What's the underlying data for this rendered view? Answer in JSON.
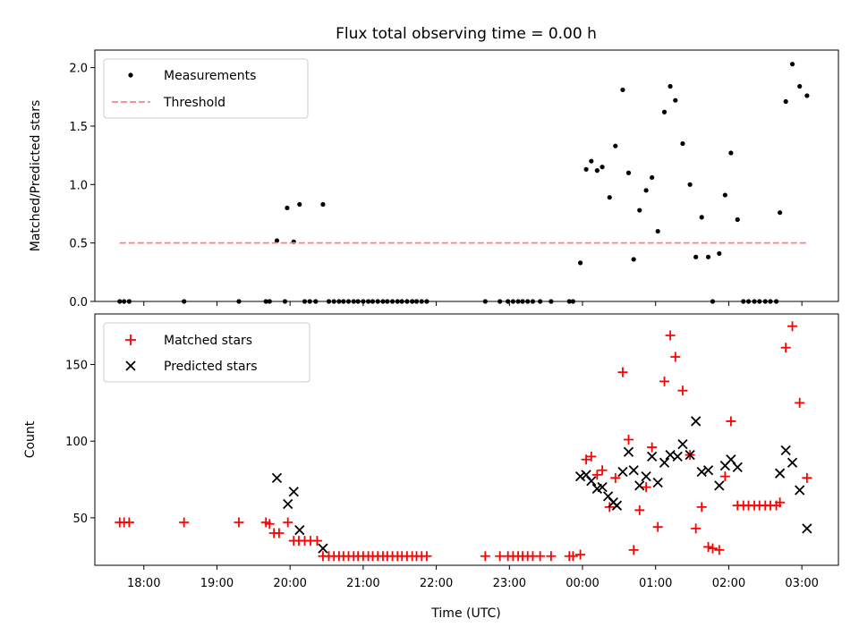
{
  "chart_data": [
    {
      "type": "scatter",
      "title": "Flux total observing time = 0.00 h",
      "xlabel": "",
      "ylabel": "Matched/Predicted stars",
      "xlim": [
        17.33,
        27.5
      ],
      "ylim": [
        0.0,
        2.15
      ],
      "yticks": [
        0.0,
        0.5,
        1.0,
        1.5,
        2.0
      ],
      "ytick_labels": [
        "0.0",
        "0.5",
        "1.0",
        "1.5",
        "2.0"
      ],
      "legend": {
        "position": "top-left",
        "entries": [
          "Measurements",
          "Threshold"
        ]
      },
      "series": [
        {
          "name": "Measurements",
          "marker": "dot",
          "color": "#000000",
          "x": [
            17.67,
            17.73,
            17.8,
            18.55,
            19.3,
            19.67,
            19.72,
            19.82,
            19.93,
            19.96,
            20.05,
            20.13,
            20.2,
            20.27,
            20.35,
            20.45,
            20.53,
            20.6,
            20.67,
            20.73,
            20.8,
            20.87,
            20.93,
            21.0,
            21.07,
            21.13,
            21.2,
            21.27,
            21.33,
            21.4,
            21.47,
            21.53,
            21.6,
            21.67,
            21.73,
            21.8,
            21.87,
            22.67,
            22.87,
            22.98,
            23.05,
            23.12,
            23.18,
            23.25,
            23.32,
            23.42,
            23.57,
            23.82,
            23.87,
            23.97,
            24.05,
            24.12,
            24.2,
            24.27,
            24.37,
            24.45,
            24.55,
            24.63,
            24.7,
            24.78,
            24.87,
            24.95,
            25.03,
            25.12,
            25.2,
            25.27,
            25.37,
            25.47,
            25.55,
            25.63,
            25.72,
            25.78,
            25.87,
            25.95,
            26.03,
            26.12,
            26.2,
            26.27,
            26.35,
            26.42,
            26.5,
            26.57,
            26.65,
            26.7,
            26.78,
            26.87,
            26.97,
            27.07
          ],
          "y": [
            0,
            0,
            0,
            0,
            0,
            0,
            0,
            0.52,
            0,
            0.8,
            0.51,
            0.83,
            0,
            0,
            0,
            0.83,
            0,
            0,
            0,
            0,
            0,
            0,
            0,
            0,
            0,
            0,
            0,
            0,
            0,
            0,
            0,
            0,
            0,
            0,
            0,
            0,
            0,
            0,
            0,
            0,
            0,
            0,
            0,
            0,
            0,
            0,
            0,
            0,
            0,
            0.33,
            1.13,
            1.2,
            1.12,
            1.15,
            0.89,
            1.33,
            1.81,
            1.1,
            0.36,
            0.78,
            0.95,
            1.06,
            0.6,
            1.62,
            1.84,
            1.72,
            1.35,
            1.0,
            0.38,
            0.72,
            0.38,
            0,
            0.41,
            0.91,
            1.27,
            0.7,
            0,
            0,
            0,
            0,
            0,
            0,
            0,
            0.76,
            1.71,
            2.03,
            1.84,
            1.76
          ]
        },
        {
          "name": "Threshold",
          "style": "dashed",
          "color": "#ff7f7f",
          "x": [
            17.67,
            27.07
          ],
          "y": [
            0.5,
            0.5
          ]
        }
      ]
    },
    {
      "type": "scatter",
      "title": "",
      "xlabel": "Time (UTC)",
      "ylabel": "Count",
      "xlim": [
        17.33,
        27.5
      ],
      "ylim": [
        19,
        183
      ],
      "yticks": [
        50,
        100,
        150
      ],
      "ytick_labels": [
        "50",
        "100",
        "150"
      ],
      "xticks": [
        18,
        19,
        20,
        21,
        22,
        23,
        24,
        25,
        26,
        27
      ],
      "xtick_labels": [
        "18:00",
        "19:00",
        "20:00",
        "21:00",
        "22:00",
        "23:00",
        "00:00",
        "01:00",
        "02:00",
        "03:00"
      ],
      "legend": {
        "position": "top-left",
        "entries": [
          "Matched stars",
          "Predicted stars"
        ]
      },
      "series": [
        {
          "name": "Matched stars",
          "marker": "plus",
          "color": "#ff0000",
          "x": [
            17.67,
            17.73,
            17.8,
            18.55,
            19.3,
            19.67,
            19.72,
            19.78,
            19.85,
            19.97,
            20.05,
            20.12,
            20.2,
            20.28,
            20.37,
            20.45,
            20.53,
            20.6,
            20.67,
            20.73,
            20.8,
            20.87,
            20.93,
            21.0,
            21.07,
            21.13,
            21.2,
            21.27,
            21.33,
            21.4,
            21.47,
            21.53,
            21.6,
            21.67,
            21.73,
            21.8,
            21.87,
            22.67,
            22.87,
            22.98,
            23.05,
            23.12,
            23.18,
            23.25,
            23.32,
            23.42,
            23.57,
            23.82,
            23.87,
            23.97,
            24.05,
            24.12,
            24.2,
            24.27,
            24.37,
            24.45,
            24.55,
            24.63,
            24.7,
            24.78,
            24.87,
            24.95,
            25.03,
            25.12,
            25.2,
            25.27,
            25.37,
            25.47,
            25.55,
            25.63,
            25.72,
            25.78,
            25.87,
            25.95,
            26.03,
            26.12,
            26.2,
            26.27,
            26.35,
            26.42,
            26.5,
            26.57,
            26.65,
            26.7,
            26.78,
            26.87,
            26.97,
            27.07
          ],
          "y": [
            47,
            47,
            47,
            47,
            47,
            47,
            46,
            40,
            40,
            47,
            35,
            35,
            35,
            35,
            35,
            25,
            25,
            25,
            25,
            25,
            25,
            25,
            25,
            25,
            25,
            25,
            25,
            25,
            25,
            25,
            25,
            25,
            25,
            25,
            25,
            25,
            25,
            25,
            25,
            25,
            25,
            25,
            25,
            25,
            25,
            25,
            25,
            25,
            25,
            26,
            88,
            90,
            78,
            81,
            57,
            76,
            145,
            101,
            29,
            55,
            70,
            96,
            44,
            139,
            169,
            155,
            133,
            91,
            43,
            57,
            31,
            30,
            29,
            77,
            113,
            58,
            58,
            58,
            58,
            58,
            58,
            58,
            58,
            60,
            161,
            175,
            125,
            76
          ]
        },
        {
          "name": "Predicted stars",
          "marker": "x",
          "color": "#000000",
          "x": [
            19.82,
            19.97,
            20.05,
            20.13,
            20.45,
            23.97,
            24.05,
            24.12,
            24.2,
            24.27,
            24.35,
            24.42,
            24.47,
            24.55,
            24.63,
            24.7,
            24.78,
            24.87,
            24.95,
            25.03,
            25.12,
            25.2,
            25.3,
            25.37,
            25.47,
            25.55,
            25.63,
            25.72,
            25.87,
            25.95,
            26.03,
            26.12,
            26.7,
            26.78,
            26.87,
            26.97,
            27.07
          ],
          "y": [
            76,
            59,
            67,
            42,
            30,
            77,
            78,
            74,
            69,
            70,
            64,
            60,
            58,
            80,
            93,
            81,
            71,
            77,
            90,
            73,
            86,
            91,
            90,
            98,
            91,
            113,
            80,
            81,
            71,
            84,
            88,
            83,
            79,
            94,
            86,
            68,
            43
          ]
        }
      ]
    }
  ]
}
